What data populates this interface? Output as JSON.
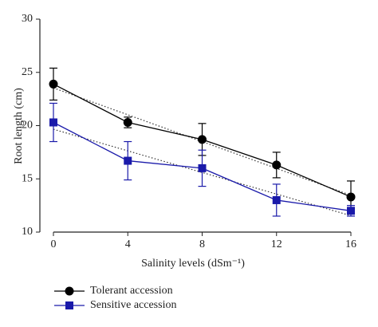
{
  "chart_data": {
    "type": "line",
    "x_label": "Salinity levels (dSm⁻¹)",
    "y_label": "Root length (cm)",
    "x": [
      0,
      4,
      8,
      12,
      16
    ],
    "xlim": [
      0,
      16
    ],
    "xticks": [
      0,
      4,
      8,
      12,
      16
    ],
    "ylim": [
      10,
      30
    ],
    "yticks": [
      10,
      15,
      20,
      25,
      30
    ],
    "trendline": true,
    "series": [
      {
        "name": "Tolerant accession",
        "color": "#000000",
        "marker": "circle",
        "values": [
          23.9,
          20.3,
          18.7,
          16.3,
          13.3
        ],
        "errors": [
          1.5,
          0.5,
          1.5,
          1.2,
          1.5
        ]
      },
      {
        "name": "Sensitive accession",
        "color": "#1a1aaa",
        "marker": "square",
        "values": [
          20.3,
          16.7,
          16.0,
          13.0,
          12.0
        ],
        "errors": [
          1.8,
          1.8,
          1.7,
          1.5,
          0.5
        ]
      }
    ]
  }
}
